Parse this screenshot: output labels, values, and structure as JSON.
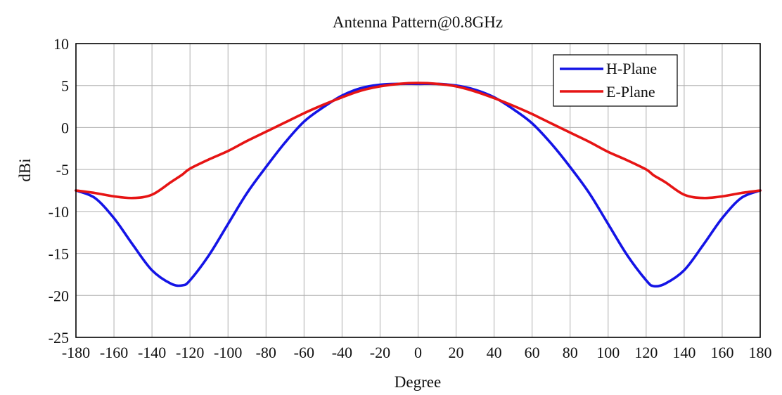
{
  "chart_data": {
    "type": "line",
    "title": "Antenna Pattern@0.8GHz",
    "xlabel": "Degree",
    "ylabel": "dBi",
    "xlim": [
      -180,
      180
    ],
    "ylim": [
      -25,
      10
    ],
    "xticks": [
      -180,
      -160,
      -140,
      -120,
      -100,
      -80,
      -60,
      -40,
      -20,
      0,
      20,
      40,
      60,
      80,
      100,
      120,
      140,
      160,
      180
    ],
    "yticks": [
      10,
      5,
      0,
      -5,
      -10,
      -15,
      -20,
      -25
    ],
    "grid": true,
    "legend_position": "top-right",
    "x": [
      -180,
      -170,
      -160,
      -150,
      -140,
      -130,
      -124,
      -120,
      -110,
      -100,
      -90,
      -80,
      -70,
      -60,
      -50,
      -40,
      -30,
      -20,
      -10,
      0,
      10,
      20,
      30,
      40,
      50,
      60,
      70,
      80,
      90,
      100,
      110,
      120,
      124,
      130,
      140,
      150,
      160,
      170,
      180
    ],
    "series": [
      {
        "name": "H-Plane",
        "color": "#1414e6",
        "values": [
          -7.5,
          -8.4,
          -10.8,
          -14.0,
          -17.0,
          -18.6,
          -18.8,
          -18.2,
          -15.2,
          -11.5,
          -7.8,
          -4.7,
          -1.8,
          0.7,
          2.4,
          3.8,
          4.7,
          5.1,
          5.2,
          5.2,
          5.2,
          5.0,
          4.5,
          3.6,
          2.2,
          0.5,
          -1.9,
          -4.7,
          -7.8,
          -11.5,
          -15.2,
          -18.2,
          -18.9,
          -18.6,
          -17.0,
          -14.0,
          -10.8,
          -8.4,
          -7.5
        ]
      },
      {
        "name": "E-Plane",
        "color": "#e61414",
        "values": [
          -7.5,
          -7.8,
          -8.2,
          -8.4,
          -8.0,
          -6.5,
          -5.6,
          -4.9,
          -3.8,
          -2.8,
          -1.6,
          -0.5,
          0.6,
          1.7,
          2.7,
          3.6,
          4.4,
          4.9,
          5.2,
          5.3,
          5.2,
          4.9,
          4.3,
          3.5,
          2.6,
          1.6,
          0.5,
          -0.6,
          -1.7,
          -2.9,
          -3.9,
          -5.0,
          -5.7,
          -6.5,
          -8.0,
          -8.4,
          -8.2,
          -7.8,
          -7.5
        ]
      }
    ]
  }
}
